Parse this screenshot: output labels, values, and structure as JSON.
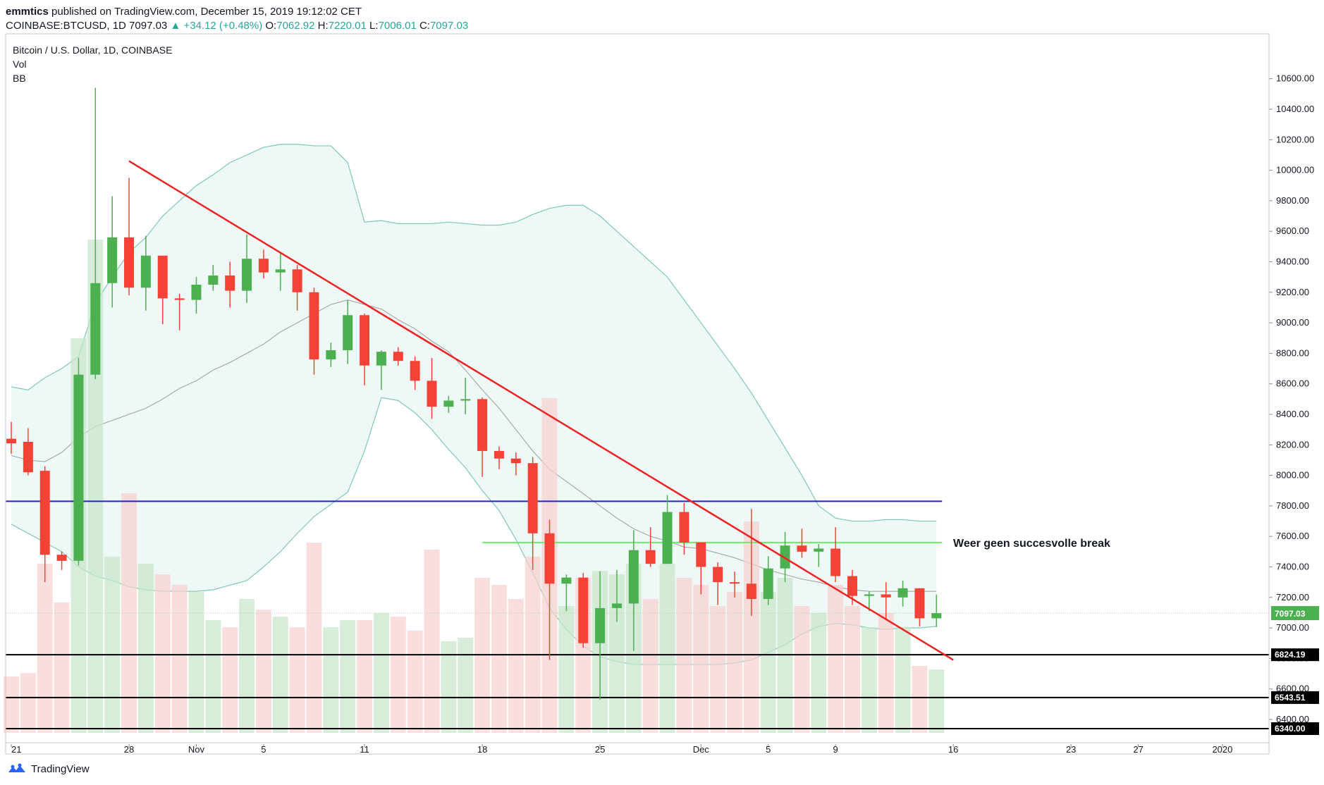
{
  "header": {
    "author": "emmtics",
    "published": "published on TradingView.com, December 15, 2019 19:12:02 CET",
    "symbol": "COINBASE:BTCUSD, 1D",
    "last": "7097.03",
    "change": "+34.12 (+0.48%)",
    "open_label": "O:",
    "open": "7062.92",
    "high_label": "H:",
    "high": "7220.01",
    "low_label": "L:",
    "low": "7006.01",
    "close_label": "C:",
    "close": "7097.03"
  },
  "legend": {
    "title": "Bitcoin / U.S. Dollar, 1D, COINBASE",
    "vol": "Vol",
    "bb": "BB"
  },
  "footer": {
    "brand": "TradingView"
  },
  "colors": {
    "up": "#4caf50",
    "down": "#f44336",
    "band_fill": "#e8f5f3",
    "band_line": "#7fc8b8",
    "basis": "#a09a9a",
    "trend": "#ee2222",
    "support_blue": "#2222cc",
    "resistance_green": "#66ee66"
  },
  "chart_data": {
    "type": "candlestick",
    "title": "Bitcoin / U.S. Dollar, 1D, COINBASE",
    "ylim": [
      6340,
      10700
    ],
    "y_ticks": [
      "10600.00",
      "10400.00",
      "10200.00",
      "10000.00",
      "9800.00",
      "9600.00",
      "9400.00",
      "9200.00",
      "9000.00",
      "8800.00",
      "8600.00",
      "8400.00",
      "8200.00",
      "8000.00",
      "7800.00",
      "7600.00",
      "7400.00",
      "7200.00",
      "7000.00",
      "6800.00",
      "6600.00",
      "6400.00"
    ],
    "x_ticks": [
      {
        "label": "21",
        "i": 0
      },
      {
        "label": "28",
        "i": 7
      },
      {
        "label": "Nov",
        "i": 11
      },
      {
        "label": "5",
        "i": 15
      },
      {
        "label": "11",
        "i": 21
      },
      {
        "label": "18",
        "i": 28
      },
      {
        "label": "25",
        "i": 35
      },
      {
        "label": "Dec",
        "i": 41
      },
      {
        "label": "5",
        "i": 45
      },
      {
        "label": "9",
        "i": 49
      },
      {
        "label": "16",
        "i": 56
      },
      {
        "label": "23",
        "i": 63
      },
      {
        "label": "27",
        "i": 67
      },
      {
        "label": "2020",
        "i": 72
      }
    ],
    "candles": [
      {
        "o": 8240,
        "h": 8350,
        "l": 8140,
        "c": 8210
      },
      {
        "o": 8220,
        "h": 8310,
        "l": 8000,
        "c": 8020
      },
      {
        "o": 8030,
        "h": 8060,
        "l": 7300,
        "c": 7480
      },
      {
        "o": 7480,
        "h": 7500,
        "l": 7380,
        "c": 7440
      },
      {
        "o": 7440,
        "h": 8770,
        "l": 7410,
        "c": 8660
      },
      {
        "o": 8660,
        "h": 10540,
        "l": 8630,
        "c": 9260
      },
      {
        "o": 9260,
        "h": 9830,
        "l": 9100,
        "c": 9560
      },
      {
        "o": 9560,
        "h": 9950,
        "l": 9180,
        "c": 9230
      },
      {
        "o": 9230,
        "h": 9570,
        "l": 9080,
        "c": 9440
      },
      {
        "o": 9440,
        "h": 9440,
        "l": 8990,
        "c": 9160
      },
      {
        "o": 9160,
        "h": 9190,
        "l": 8950,
        "c": 9150
      },
      {
        "o": 9150,
        "h": 9300,
        "l": 9060,
        "c": 9250
      },
      {
        "o": 9250,
        "h": 9380,
        "l": 9210,
        "c": 9310
      },
      {
        "o": 9310,
        "h": 9400,
        "l": 9100,
        "c": 9210
      },
      {
        "o": 9210,
        "h": 9580,
        "l": 9130,
        "c": 9420
      },
      {
        "o": 9420,
        "h": 9480,
        "l": 9290,
        "c": 9330
      },
      {
        "o": 9330,
        "h": 9460,
        "l": 9210,
        "c": 9350
      },
      {
        "o": 9350,
        "h": 9380,
        "l": 9080,
        "c": 9200
      },
      {
        "o": 9200,
        "h": 9230,
        "l": 8660,
        "c": 8760
      },
      {
        "o": 8760,
        "h": 8870,
        "l": 8710,
        "c": 8820
      },
      {
        "o": 8820,
        "h": 9150,
        "l": 8730,
        "c": 9050
      },
      {
        "o": 9050,
        "h": 9060,
        "l": 8590,
        "c": 8720
      },
      {
        "o": 8720,
        "h": 8820,
        "l": 8560,
        "c": 8810
      },
      {
        "o": 8810,
        "h": 8840,
        "l": 8720,
        "c": 8750
      },
      {
        "o": 8750,
        "h": 8780,
        "l": 8560,
        "c": 8620
      },
      {
        "o": 8620,
        "h": 8770,
        "l": 8370,
        "c": 8450
      },
      {
        "o": 8450,
        "h": 8520,
        "l": 8410,
        "c": 8490
      },
      {
        "o": 8490,
        "h": 8640,
        "l": 8400,
        "c": 8500
      },
      {
        "o": 8500,
        "h": 8510,
        "l": 7990,
        "c": 8160
      },
      {
        "o": 8160,
        "h": 8190,
        "l": 8040,
        "c": 8110
      },
      {
        "o": 8110,
        "h": 8150,
        "l": 8000,
        "c": 8080
      },
      {
        "o": 8080,
        "h": 8120,
        "l": 7380,
        "c": 7620
      },
      {
        "o": 7620,
        "h": 7710,
        "l": 6790,
        "c": 7290
      },
      {
        "o": 7290,
        "h": 7350,
        "l": 7110,
        "c": 7330
      },
      {
        "o": 7330,
        "h": 7360,
        "l": 6870,
        "c": 6900
      },
      {
        "o": 6900,
        "h": 7370,
        "l": 6530,
        "c": 7130
      },
      {
        "o": 7130,
        "h": 7380,
        "l": 7040,
        "c": 7160
      },
      {
        "o": 7160,
        "h": 7640,
        "l": 6850,
        "c": 7510
      },
      {
        "o": 7510,
        "h": 7660,
        "l": 7400,
        "c": 7420
      },
      {
        "o": 7420,
        "h": 7870,
        "l": 7420,
        "c": 7760
      },
      {
        "o": 7760,
        "h": 7820,
        "l": 7480,
        "c": 7560
      },
      {
        "o": 7560,
        "h": 7560,
        "l": 7220,
        "c": 7400
      },
      {
        "o": 7400,
        "h": 7430,
        "l": 7150,
        "c": 7300
      },
      {
        "o": 7300,
        "h": 7370,
        "l": 7200,
        "c": 7290
      },
      {
        "o": 7290,
        "h": 7780,
        "l": 7080,
        "c": 7190
      },
      {
        "o": 7190,
        "h": 7470,
        "l": 7150,
        "c": 7390
      },
      {
        "o": 7390,
        "h": 7630,
        "l": 7300,
        "c": 7540
      },
      {
        "o": 7540,
        "h": 7650,
        "l": 7460,
        "c": 7500
      },
      {
        "o": 7500,
        "h": 7550,
        "l": 7400,
        "c": 7520
      },
      {
        "o": 7520,
        "h": 7660,
        "l": 7300,
        "c": 7340
      },
      {
        "o": 7340,
        "h": 7380,
        "l": 7150,
        "c": 7210
      },
      {
        "o": 7210,
        "h": 7240,
        "l": 7110,
        "c": 7220
      },
      {
        "o": 7220,
        "h": 7300,
        "l": 7060,
        "c": 7200
      },
      {
        "o": 7200,
        "h": 7310,
        "l": 7140,
        "c": 7260
      },
      {
        "o": 7260,
        "h": 7260,
        "l": 7010,
        "c": 7063
      },
      {
        "o": 7063,
        "h": 7220,
        "l": 7006,
        "c": 7097
      }
    ],
    "volume": [
      80,
      85,
      240,
      185,
      560,
      700,
      250,
      340,
      240,
      225,
      210,
      200,
      160,
      150,
      190,
      175,
      165,
      150,
      270,
      150,
      160,
      160,
      170,
      165,
      145,
      260,
      130,
      135,
      220,
      210,
      190,
      250,
      475,
      180,
      220,
      230,
      225,
      240,
      190,
      240,
      220,
      210,
      180,
      200,
      300,
      200,
      220,
      180,
      170,
      210,
      180,
      150,
      170,
      150,
      95,
      90
    ],
    "bb_upper": [
      8580,
      8560,
      8640,
      8700,
      8780,
      9130,
      9300,
      9460,
      9560,
      9700,
      9800,
      9900,
      9970,
      10050,
      10100,
      10150,
      10170,
      10170,
      10160,
      10160,
      10050,
      9660,
      9670,
      9650,
      9650,
      9650,
      9660,
      9650,
      9640,
      9640,
      9660,
      9710,
      9750,
      9770,
      9770,
      9700,
      9600,
      9500,
      9400,
      9300,
      9150,
      9000,
      8850,
      8700,
      8540,
      8360,
      8180,
      8000,
      7800,
      7720,
      7700,
      7700,
      7710,
      7710,
      7700,
      7700
    ],
    "bb_basis": [
      8130,
      8100,
      8090,
      8150,
      8250,
      8320,
      8360,
      8400,
      8440,
      8500,
      8570,
      8620,
      8690,
      8740,
      8800,
      8860,
      8940,
      9000,
      9060,
      9120,
      9150,
      9120,
      9090,
      9020,
      8960,
      8880,
      8810,
      8690,
      8560,
      8440,
      8300,
      8160,
      8040,
      7960,
      7880,
      7800,
      7720,
      7650,
      7600,
      7570,
      7530,
      7520,
      7490,
      7460,
      7420,
      7380,
      7350,
      7320,
      7300,
      7270,
      7250,
      7240,
      7240,
      7240,
      7240,
      7240
    ],
    "bb_lower": [
      7680,
      7620,
      7560,
      7500,
      7400,
      7340,
      7310,
      7270,
      7250,
      7240,
      7240,
      7240,
      7250,
      7280,
      7310,
      7400,
      7500,
      7620,
      7730,
      7810,
      7890,
      8160,
      8510,
      8490,
      8410,
      8300,
      8170,
      8050,
      7900,
      7770,
      7580,
      7360,
      7130,
      6990,
      6880,
      6810,
      6780,
      6760,
      6760,
      6760,
      6760,
      6760,
      6760,
      6770,
      6790,
      6840,
      6890,
      6960,
      7010,
      7030,
      7020,
      7000,
      6990,
      7000,
      7000,
      7010
    ]
  },
  "drawings": {
    "trendline": {
      "from": {
        "i": 7,
        "price": 10060
      },
      "to": {
        "i": 56,
        "price": 6790
      }
    },
    "blue_level": {
      "price": 7830
    },
    "green_level": {
      "price": 7560,
      "from_i": 28,
      "to_i": 55
    },
    "annotation": "Weer geen succesvolle break",
    "price_levels": [
      {
        "label": "6824.19",
        "price": 6824.19
      },
      {
        "label": "6543.51",
        "price": 6543.51
      },
      {
        "label": "6340.00",
        "price": 6340.0
      }
    ],
    "last_price_label": "7097.03",
    "last_price": 7097.03
  }
}
